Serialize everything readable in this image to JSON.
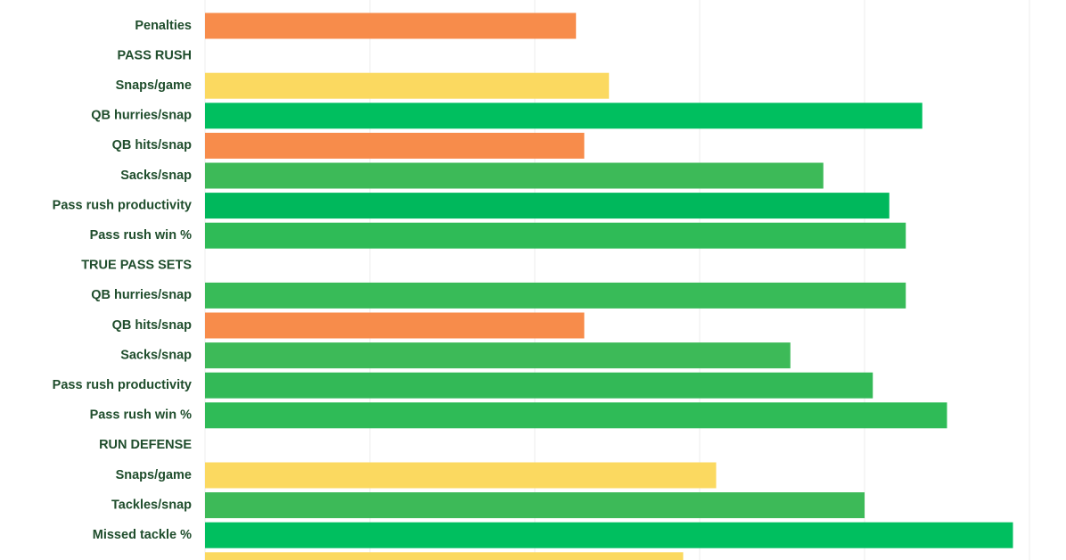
{
  "chart_data": {
    "type": "bar",
    "orientation": "horizontal",
    "categories": [
      "Penalties",
      "PASS RUSH",
      "Snaps/game",
      "QB hurries/snap",
      "QB hits/snap",
      "Sacks/snap",
      "Pass rush productivity",
      "Pass rush win %",
      "TRUE PASS SETS",
      "QB hurries/snap",
      "QB hits/snap",
      "Sacks/snap",
      "Pass rush productivity",
      "Pass rush win %",
      "RUN DEFENSE",
      "Snaps/game",
      "Tackles/snap",
      "Missed tackle %",
      null
    ],
    "values": [
      45,
      null,
      49,
      87,
      46,
      75,
      83,
      85,
      null,
      85,
      46,
      71,
      81,
      90,
      null,
      62,
      80,
      98,
      58
    ],
    "colors": [
      "#f78c4b",
      null,
      "#fbd960",
      "#00bf5f",
      "#f78c4b",
      "#3dba58",
      "#00b85c",
      "#2fbb57",
      null,
      "#38bb58",
      "#f78c4b",
      "#3dba58",
      "#33b957",
      "#2fbb57",
      null,
      "#fbd960",
      "#3dba58",
      "#00bf5f",
      "#fbd960"
    ],
    "xlim": [
      0,
      100
    ],
    "xticks": [
      0,
      20,
      40,
      60,
      80,
      100
    ],
    "grid": true
  }
}
